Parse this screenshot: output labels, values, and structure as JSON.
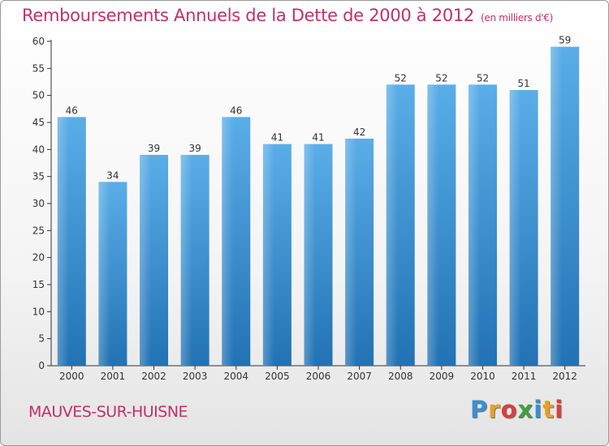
{
  "chart_data": {
    "type": "bar",
    "title": "Remboursements Annuels de la Dette de 2000 à 2012",
    "unit_note": "(en milliers d'€)",
    "xlabel": "",
    "ylabel": "",
    "categories": [
      "2000",
      "2001",
      "2002",
      "2003",
      "2004",
      "2005",
      "2006",
      "2007",
      "2008",
      "2009",
      "2010",
      "2011",
      "2012"
    ],
    "values": [
      46,
      34,
      39,
      39,
      46,
      41,
      41,
      42,
      52,
      52,
      52,
      51,
      59
    ],
    "ylim": [
      0,
      60
    ],
    "yticks": [
      0,
      5,
      10,
      15,
      20,
      25,
      30,
      35,
      40,
      45,
      50,
      55,
      60
    ],
    "grid": false,
    "legend": "none",
    "bar_color_top": "#5aaee8",
    "bar_color_bottom": "#2272b4",
    "title_color": "#c0306a"
  },
  "footer": {
    "commune": "MAUVES-SUR-HUISNE"
  },
  "logo": {
    "letters": [
      {
        "ch": "P",
        "color": "#3a8fd0"
      },
      {
        "ch": "r",
        "color": "#e8a020"
      },
      {
        "ch": "o",
        "color": "#d84040"
      },
      {
        "ch": "x",
        "color": "#40a040"
      },
      {
        "ch": "i",
        "color": "#3a8fd0"
      },
      {
        "ch": "t",
        "color": "#e8a020"
      },
      {
        "ch": "i",
        "color": "#d84040"
      }
    ]
  }
}
